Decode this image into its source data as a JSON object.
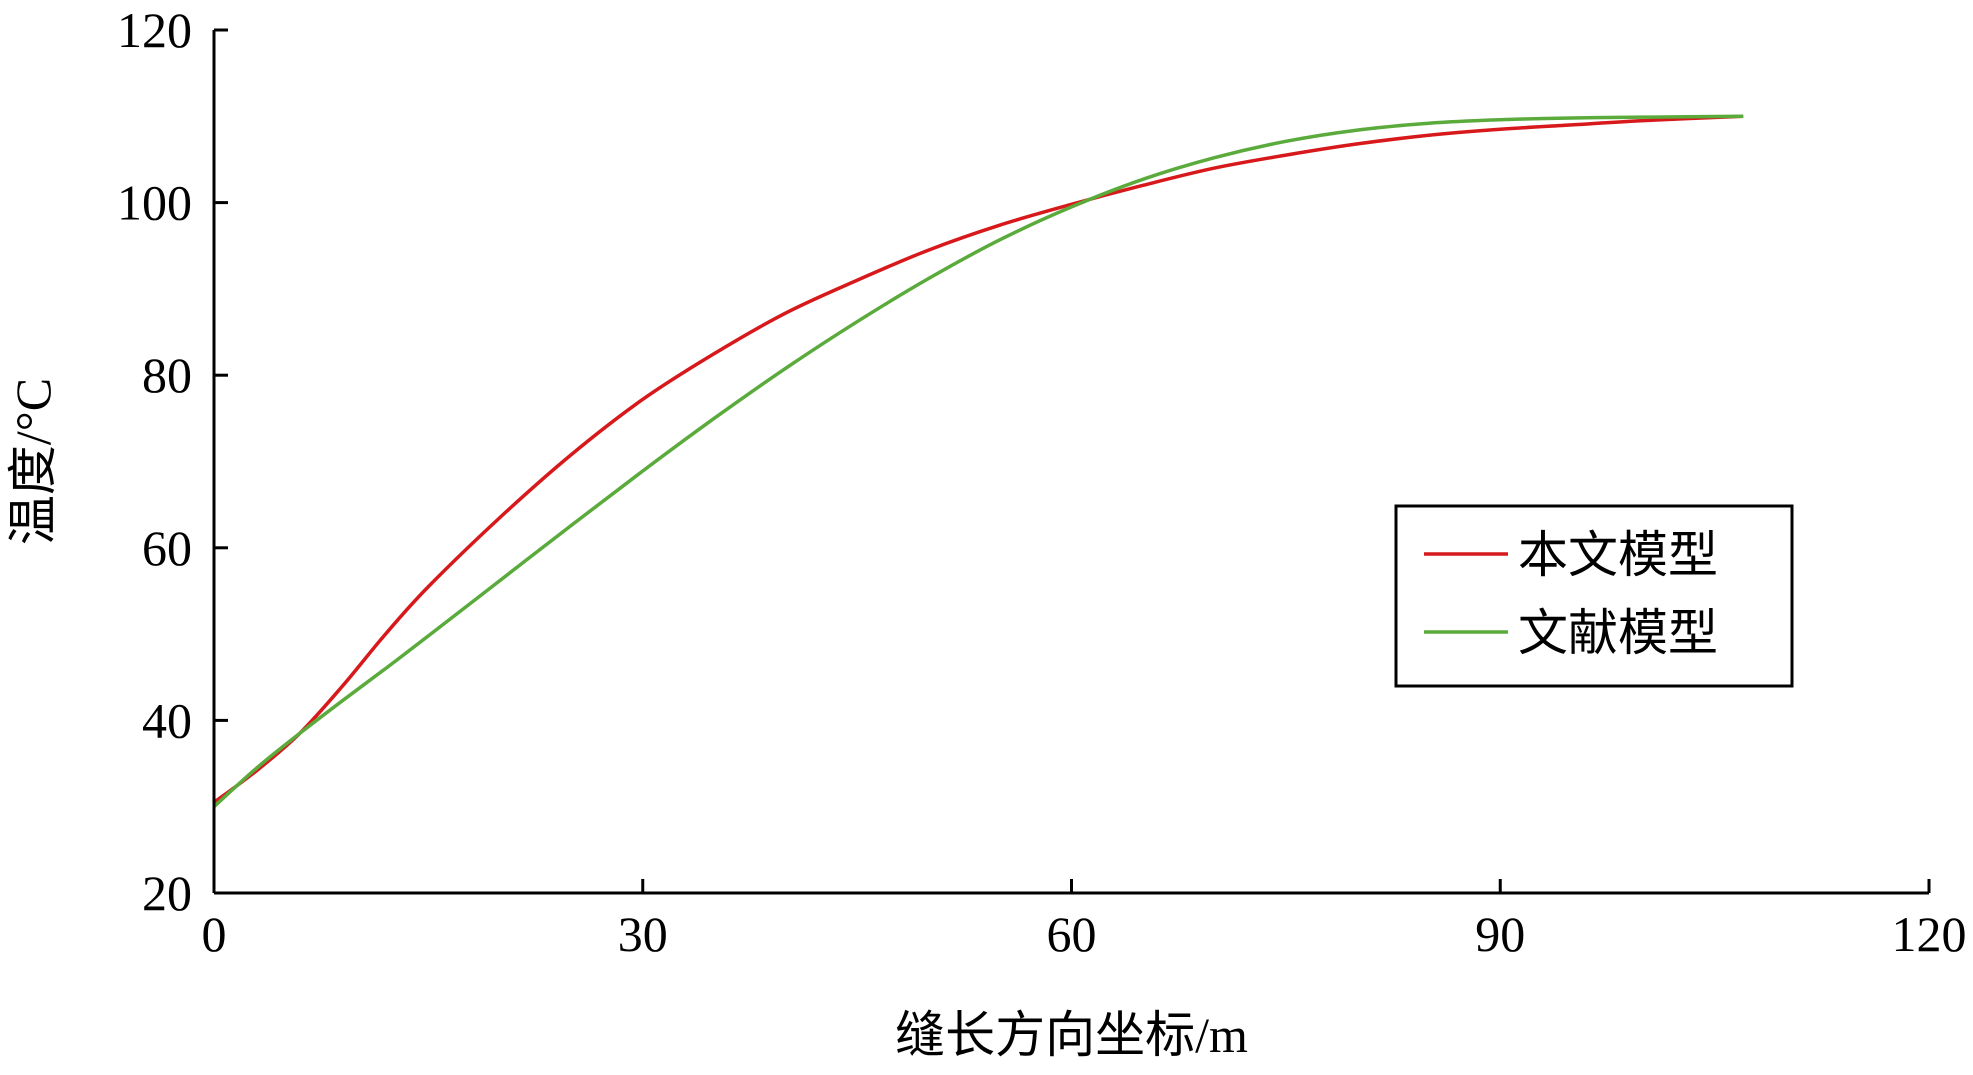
{
  "chart_data": {
    "type": "line",
    "title": "",
    "xlabel": "缝长方向坐标/m",
    "ylabel": "温度/°C",
    "xlim": [
      0,
      120
    ],
    "ylim": [
      20,
      120
    ],
    "xticks": [
      0,
      30,
      60,
      90,
      120
    ],
    "yticks": [
      20,
      40,
      60,
      80,
      100,
      120
    ],
    "grid": false,
    "legend_position": "center-right",
    "series": [
      {
        "name": "本文模型",
        "color": "#d7191c",
        "x": [
          0,
          3,
          6,
          9,
          12,
          15,
          20,
          25,
          30,
          35,
          40,
          45,
          50,
          55,
          60,
          65,
          70,
          75,
          80,
          85,
          90,
          95,
          100,
          107
        ],
        "y": [
          30.5,
          34.2,
          38.5,
          44.0,
          50.0,
          55.5,
          63.5,
          70.8,
          77.2,
          82.5,
          87.2,
          91.0,
          94.5,
          97.4,
          99.8,
          102.0,
          104.0,
          105.5,
          106.8,
          107.8,
          108.5,
          109.0,
          109.5,
          110.0
        ]
      },
      {
        "name": "文献模型",
        "color": "#5aab3c",
        "x": [
          0,
          3,
          6,
          9,
          12,
          15,
          20,
          25,
          30,
          35,
          40,
          45,
          50,
          55,
          60,
          65,
          70,
          75,
          80,
          85,
          90,
          95,
          100,
          107
        ],
        "y": [
          30.0,
          34.5,
          38.5,
          42.3,
          46.0,
          49.8,
          56.2,
          62.6,
          68.9,
          75.0,
          80.8,
          86.2,
          91.2,
          95.7,
          99.5,
          102.7,
          105.2,
          107.1,
          108.4,
          109.2,
          109.6,
          109.8,
          109.9,
          110.0
        ]
      }
    ]
  }
}
